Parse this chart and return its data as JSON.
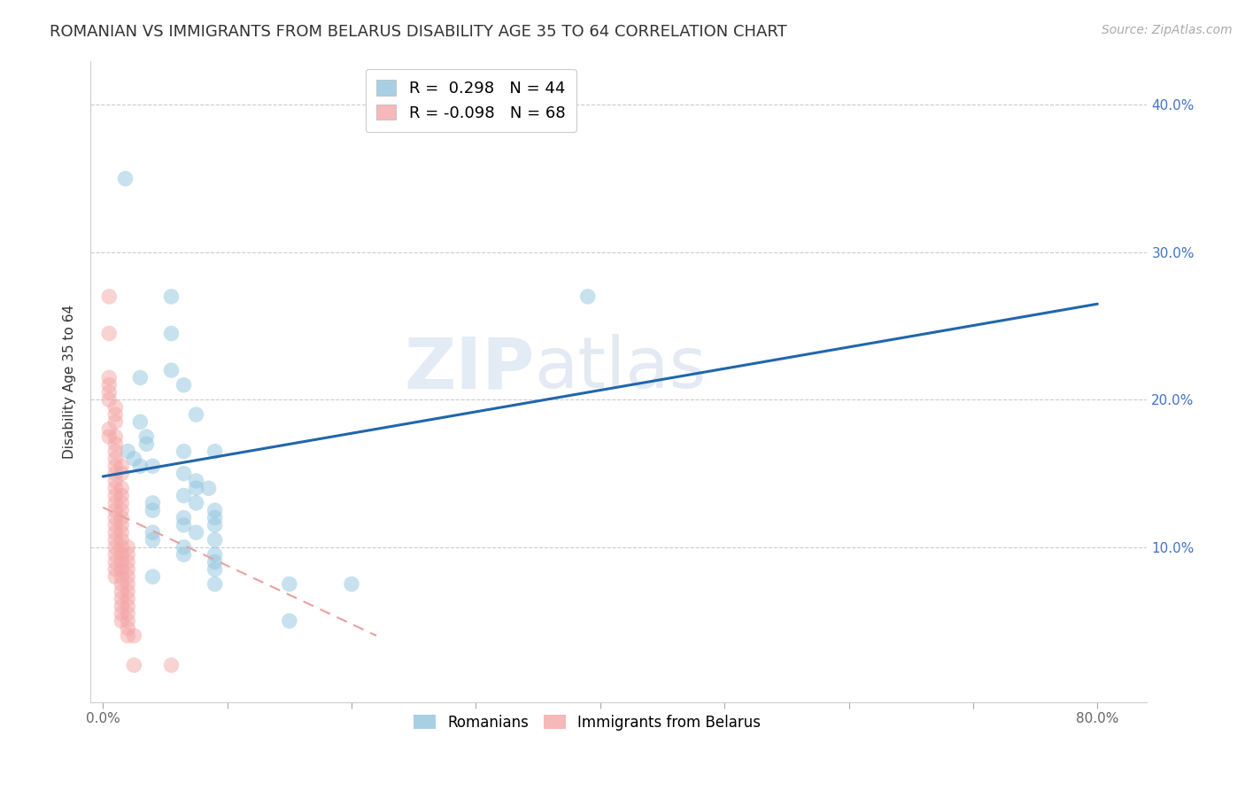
{
  "title": "ROMANIAN VS IMMIGRANTS FROM BELARUS DISABILITY AGE 35 TO 64 CORRELATION CHART",
  "source": "Source: ZipAtlas.com",
  "ylabel": "Disability Age 35 to 64",
  "xlim": [
    -0.01,
    0.84
  ],
  "ylim": [
    -0.005,
    0.43
  ],
  "blue_color": "#92c5de",
  "pink_color": "#f4a6a6",
  "blue_line_color": "#2166ac",
  "pink_line_color": "#e8a0a0",
  "legend_R_blue": "0.298",
  "legend_N_blue": "44",
  "legend_R_pink": "-0.098",
  "legend_N_pink": "68",
  "watermark_zip": "ZIP",
  "watermark_atlas": "atlas",
  "blue_line_x0": 0.0,
  "blue_line_y0": 0.148,
  "blue_line_x1": 0.8,
  "blue_line_y1": 0.265,
  "pink_line_x0": 0.0,
  "pink_line_y0": 0.127,
  "pink_line_x1": 0.22,
  "pink_line_y1": 0.04,
  "romanians": [
    [
      0.018,
      0.35
    ],
    [
      0.055,
      0.27
    ],
    [
      0.39,
      0.27
    ],
    [
      0.055,
      0.245
    ],
    [
      0.055,
      0.22
    ],
    [
      0.03,
      0.215
    ],
    [
      0.065,
      0.21
    ],
    [
      0.075,
      0.19
    ],
    [
      0.03,
      0.185
    ],
    [
      0.035,
      0.175
    ],
    [
      0.035,
      0.17
    ],
    [
      0.065,
      0.165
    ],
    [
      0.09,
      0.165
    ],
    [
      0.02,
      0.165
    ],
    [
      0.025,
      0.16
    ],
    [
      0.03,
      0.155
    ],
    [
      0.04,
      0.155
    ],
    [
      0.065,
      0.15
    ],
    [
      0.075,
      0.145
    ],
    [
      0.075,
      0.14
    ],
    [
      0.085,
      0.14
    ],
    [
      0.065,
      0.135
    ],
    [
      0.075,
      0.13
    ],
    [
      0.04,
      0.13
    ],
    [
      0.04,
      0.125
    ],
    [
      0.09,
      0.125
    ],
    [
      0.065,
      0.12
    ],
    [
      0.09,
      0.12
    ],
    [
      0.09,
      0.115
    ],
    [
      0.065,
      0.115
    ],
    [
      0.075,
      0.11
    ],
    [
      0.04,
      0.11
    ],
    [
      0.09,
      0.105
    ],
    [
      0.04,
      0.105
    ],
    [
      0.065,
      0.1
    ],
    [
      0.065,
      0.095
    ],
    [
      0.09,
      0.095
    ],
    [
      0.09,
      0.09
    ],
    [
      0.09,
      0.085
    ],
    [
      0.04,
      0.08
    ],
    [
      0.09,
      0.075
    ],
    [
      0.15,
      0.075
    ],
    [
      0.2,
      0.075
    ],
    [
      0.15,
      0.05
    ]
  ],
  "belarus": [
    [
      0.005,
      0.27
    ],
    [
      0.005,
      0.245
    ],
    [
      0.005,
      0.215
    ],
    [
      0.005,
      0.21
    ],
    [
      0.005,
      0.205
    ],
    [
      0.005,
      0.2
    ],
    [
      0.01,
      0.195
    ],
    [
      0.01,
      0.19
    ],
    [
      0.01,
      0.185
    ],
    [
      0.005,
      0.18
    ],
    [
      0.01,
      0.175
    ],
    [
      0.005,
      0.175
    ],
    [
      0.01,
      0.17
    ],
    [
      0.01,
      0.165
    ],
    [
      0.01,
      0.16
    ],
    [
      0.01,
      0.155
    ],
    [
      0.015,
      0.155
    ],
    [
      0.01,
      0.15
    ],
    [
      0.015,
      0.15
    ],
    [
      0.01,
      0.145
    ],
    [
      0.015,
      0.14
    ],
    [
      0.01,
      0.14
    ],
    [
      0.015,
      0.135
    ],
    [
      0.01,
      0.135
    ],
    [
      0.015,
      0.13
    ],
    [
      0.01,
      0.13
    ],
    [
      0.015,
      0.125
    ],
    [
      0.01,
      0.125
    ],
    [
      0.015,
      0.12
    ],
    [
      0.01,
      0.12
    ],
    [
      0.015,
      0.115
    ],
    [
      0.01,
      0.115
    ],
    [
      0.015,
      0.11
    ],
    [
      0.01,
      0.11
    ],
    [
      0.015,
      0.105
    ],
    [
      0.01,
      0.105
    ],
    [
      0.015,
      0.1
    ],
    [
      0.01,
      0.1
    ],
    [
      0.02,
      0.1
    ],
    [
      0.015,
      0.095
    ],
    [
      0.02,
      0.095
    ],
    [
      0.01,
      0.095
    ],
    [
      0.02,
      0.09
    ],
    [
      0.015,
      0.09
    ],
    [
      0.01,
      0.09
    ],
    [
      0.02,
      0.085
    ],
    [
      0.015,
      0.085
    ],
    [
      0.01,
      0.085
    ],
    [
      0.02,
      0.08
    ],
    [
      0.015,
      0.08
    ],
    [
      0.01,
      0.08
    ],
    [
      0.02,
      0.075
    ],
    [
      0.015,
      0.075
    ],
    [
      0.02,
      0.07
    ],
    [
      0.015,
      0.07
    ],
    [
      0.02,
      0.065
    ],
    [
      0.015,
      0.065
    ],
    [
      0.02,
      0.06
    ],
    [
      0.015,
      0.06
    ],
    [
      0.02,
      0.055
    ],
    [
      0.015,
      0.055
    ],
    [
      0.02,
      0.05
    ],
    [
      0.015,
      0.05
    ],
    [
      0.02,
      0.045
    ],
    [
      0.02,
      0.04
    ],
    [
      0.025,
      0.04
    ],
    [
      0.025,
      0.02
    ],
    [
      0.055,
      0.02
    ]
  ],
  "title_fontsize": 13,
  "axis_label_fontsize": 11,
  "tick_fontsize": 11,
  "source_fontsize": 10,
  "scatter_size": 160,
  "scatter_alpha": 0.5
}
